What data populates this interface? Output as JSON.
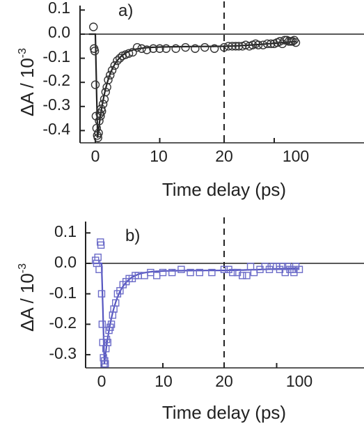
{
  "chart_data": [
    {
      "type": "scatter",
      "panel_label": "a)",
      "xlabel": "Time delay (ps)",
      "ylabel": "ΔA / 10",
      "ylabel_exponent": "-3",
      "x_ticks": [
        "0",
        "10",
        "20",
        "100"
      ],
      "y_ticks": [
        "0.1",
        "0.0",
        "-0.1",
        "-0.2",
        "-0.3",
        "-0.4"
      ],
      "ylim": [
        -0.45,
        0.14
      ],
      "x_scale": "linear (-1 to 20 ps), log (20 to 200 ps)",
      "break_at": 20,
      "colors": {
        "markers": "#333333",
        "fit": "#222222"
      },
      "series": [
        {
          "marker": "circle",
          "x": [
            -0.3,
            -0.2,
            -0.1,
            0.0,
            0.1,
            0.2,
            0.3,
            0.4,
            0.5,
            0.6,
            0.7,
            0.8,
            0.9,
            1.0,
            1.2,
            1.4,
            1.6,
            1.8,
            2.0,
            2.3,
            2.6,
            3.0,
            3.4,
            3.8,
            4.2,
            4.7,
            5.2,
            5.8,
            6.5,
            7.2,
            8.0,
            9.0,
            10.0,
            11.0,
            12.5,
            14.0,
            15.5,
            17.0,
            18.5,
            20,
            23,
            26,
            29,
            32,
            36,
            40,
            45,
            50,
            55,
            60,
            70,
            80,
            90,
            100,
            110,
            120,
            130,
            140,
            150,
            160,
            170,
            180,
            190,
            200
          ],
          "y": [
            0.03,
            -0.06,
            -0.07,
            -0.21,
            -0.34,
            -0.39,
            -0.42,
            -0.43,
            -0.41,
            -0.36,
            -0.33,
            -0.34,
            -0.31,
            -0.32,
            -0.29,
            -0.27,
            -0.24,
            -0.22,
            -0.19,
            -0.17,
            -0.15,
            -0.13,
            -0.11,
            -0.1,
            -0.09,
            -0.085,
            -0.08,
            -0.075,
            -0.055,
            -0.06,
            -0.065,
            -0.06,
            -0.06,
            -0.06,
            -0.06,
            -0.055,
            -0.06,
            -0.055,
            -0.06,
            -0.055,
            -0.05,
            -0.05,
            -0.05,
            -0.05,
            -0.05,
            -0.045,
            -0.05,
            -0.045,
            -0.04,
            -0.045,
            -0.045,
            -0.04,
            -0.04,
            -0.04,
            -0.035,
            -0.03,
            -0.04,
            -0.025,
            -0.025,
            -0.03,
            -0.03,
            -0.03,
            -0.025,
            -0.035
          ]
        }
      ]
    },
    {
      "type": "scatter",
      "panel_label": "b)",
      "xlabel": "Time delay (ps)",
      "ylabel": "ΔA / 10",
      "ylabel_exponent": "-3",
      "x_ticks": [
        "0",
        "10",
        "20",
        "100"
      ],
      "y_ticks": [
        "0.1",
        "0.0",
        "-0.1",
        "-0.2",
        "-0.3"
      ],
      "ylim": [
        -0.35,
        0.13
      ],
      "x_scale": "linear (-1 to 20 ps), log (20 to 200 ps)",
      "break_at": 20,
      "colors": {
        "markers": "#6b6bc8",
        "fit": "#5555c0"
      },
      "series": [
        {
          "marker": "square",
          "x": [
            -1.0,
            -0.8,
            -0.6,
            -0.4,
            -0.2,
            -0.1,
            0.0,
            0.1,
            0.2,
            0.3,
            0.4,
            0.5,
            0.6,
            0.7,
            0.8,
            1.0,
            1.2,
            1.4,
            1.6,
            1.8,
            2.0,
            2.3,
            2.6,
            3.0,
            3.5,
            4.0,
            4.5,
            5.0,
            5.5,
            6.0,
            7.0,
            8.0,
            9.0,
            10.0,
            11.5,
            13.0,
            14.5,
            16.0,
            18.0,
            20,
            23,
            26,
            30,
            35,
            40,
            45,
            50,
            60,
            70,
            80,
            90,
            100,
            110,
            120,
            130,
            140,
            150,
            160,
            170,
            180,
            200
          ],
          "y": [
            0.01,
            0.0,
            0.02,
            -0.02,
            0.07,
            0.06,
            -0.1,
            -0.2,
            -0.26,
            -0.31,
            -0.33,
            -0.32,
            -0.33,
            -0.28,
            -0.25,
            -0.26,
            -0.22,
            -0.21,
            -0.2,
            -0.17,
            -0.15,
            -0.13,
            -0.1,
            -0.09,
            -0.07,
            -0.06,
            -0.05,
            -0.05,
            -0.04,
            -0.04,
            -0.04,
            -0.03,
            -0.04,
            -0.03,
            -0.03,
            -0.02,
            -0.03,
            -0.03,
            -0.03,
            -0.02,
            -0.02,
            -0.03,
            -0.03,
            -0.04,
            -0.04,
            -0.01,
            -0.03,
            -0.02,
            -0.01,
            -0.02,
            -0.01,
            -0.01,
            -0.02,
            -0.01,
            -0.03,
            -0.01,
            -0.02,
            -0.02,
            -0.03,
            -0.01,
            -0.02
          ]
        }
      ]
    }
  ]
}
